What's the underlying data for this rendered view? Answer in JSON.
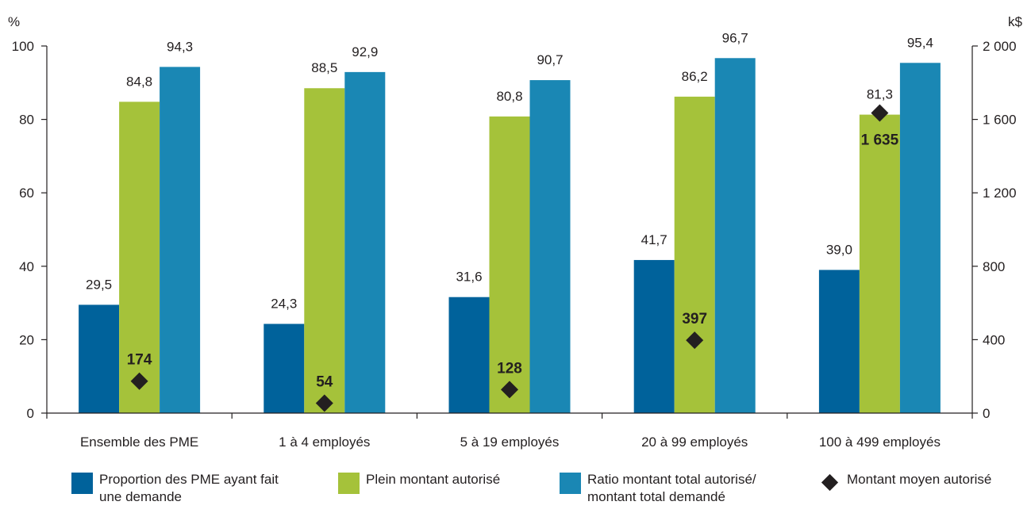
{
  "chart_data": {
    "type": "bar",
    "categories": [
      "Ensemble des PME",
      "1 à 4 employés",
      "5 à 19 employés",
      "20 à 99 employés",
      "100 à 499 employés"
    ],
    "series": [
      {
        "name": "Proportion des PME ayant fait\nune demande",
        "values": [
          29.5,
          24.3,
          31.6,
          41.7,
          39.0
        ],
        "labels": [
          "29,5",
          "24,3",
          "31,6",
          "41,7",
          "39,0"
        ],
        "color": "#00629b",
        "axis": "left"
      },
      {
        "name": "Plein montant autorisé",
        "values": [
          84.8,
          88.5,
          80.8,
          86.2,
          81.3
        ],
        "labels": [
          "84,8",
          "88,5",
          "80,8",
          "86,2",
          "81,3"
        ],
        "color": "#a5c23a",
        "axis": "left"
      },
      {
        "name": "Ratio montant total autorisé/\nmontant total demandé",
        "values": [
          94.3,
          92.9,
          90.7,
          96.7,
          95.4
        ],
        "labels": [
          "94,3",
          "92,9",
          "90,7",
          "96,7",
          "95,4"
        ],
        "color": "#1a87b4",
        "axis": "left"
      }
    ],
    "markers": {
      "name": "Montant moyen autorisé",
      "type": "scatter",
      "marker": "diamond",
      "values": [
        174,
        54,
        128,
        397,
        1635
      ],
      "labels": [
        "174",
        "54",
        "128",
        "397",
        "1 635"
      ],
      "color": "#231f20",
      "axis": "right"
    },
    "y_left": {
      "unit_label": "%",
      "ylim": [
        0,
        100
      ],
      "ticks": [
        0,
        20,
        40,
        60,
        80,
        100
      ],
      "tick_labels": [
        "0",
        "20",
        "40",
        "60",
        "80",
        "100"
      ]
    },
    "y_right": {
      "unit_label": "k$",
      "ylim": [
        0,
        2000
      ],
      "ticks": [
        0,
        400,
        800,
        1200,
        1600,
        2000
      ],
      "tick_labels": [
        "0",
        "400",
        "800",
        "1 200",
        "1 600",
        "2 000"
      ]
    },
    "grid": false,
    "legend_position": "bottom"
  }
}
